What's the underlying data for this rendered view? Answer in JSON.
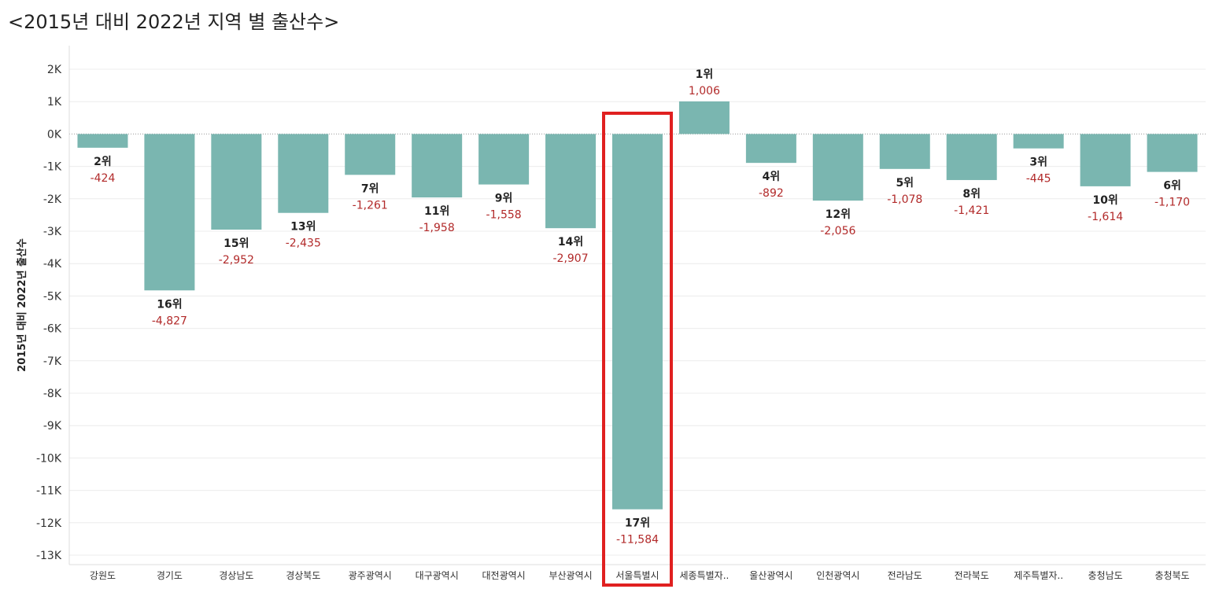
{
  "chart_data": {
    "type": "bar",
    "title": "<2015년 대비 2022년 지역 별 출산수>",
    "xlabel": "",
    "ylabel": "2015년 대비 2022년 출산수",
    "ylim": [
      -13000,
      2000
    ],
    "yticks": [
      2000,
      1000,
      0,
      -1000,
      -2000,
      -3000,
      -4000,
      -5000,
      -6000,
      -7000,
      -8000,
      -9000,
      -10000,
      -11000,
      -12000,
      -13000
    ],
    "ytick_labels": [
      "2K",
      "1K",
      "0K",
      "-1K",
      "-2K",
      "-3K",
      "-4K",
      "-5K",
      "-6K",
      "-7K",
      "-8K",
      "-9K",
      "-10K",
      "-11K",
      "-12K",
      "-13K"
    ],
    "grid": true,
    "categories": [
      "강원도",
      "경기도",
      "경상남도",
      "경상북도",
      "광주광역시",
      "대구광역시",
      "대전광역시",
      "부산광역시",
      "서울특별시",
      "세종특별자..",
      "울산광역시",
      "인천광역시",
      "전라남도",
      "전라북도",
      "제주특별자..",
      "충청남도",
      "충청북도"
    ],
    "values": [
      -424,
      -4827,
      -2952,
      -2435,
      -1261,
      -1958,
      -1558,
      -2907,
      -11584,
      1006,
      -892,
      -2056,
      -1078,
      -1421,
      -445,
      -1614,
      -1170
    ],
    "value_labels": [
      "-424",
      "-4,827",
      "-2,952",
      "-2,435",
      "-1,261",
      "-1,958",
      "-1,558",
      "-2,907",
      "-11,584",
      "1,006",
      "-892",
      "-2,056",
      "-1,078",
      "-1,421",
      "-445",
      "-1,614",
      "-1,170"
    ],
    "rank_labels": [
      "2위",
      "16위",
      "15위",
      "13위",
      "7위",
      "11위",
      "9위",
      "14위",
      "17위",
      "1위",
      "4위",
      "12위",
      "5위",
      "8위",
      "3위",
      "10위",
      "6위"
    ],
    "highlight_category": "서울특별시",
    "bar_color": "#7ab6b0",
    "value_label_color": "#b22a2a",
    "highlight_color": "#e02020"
  }
}
